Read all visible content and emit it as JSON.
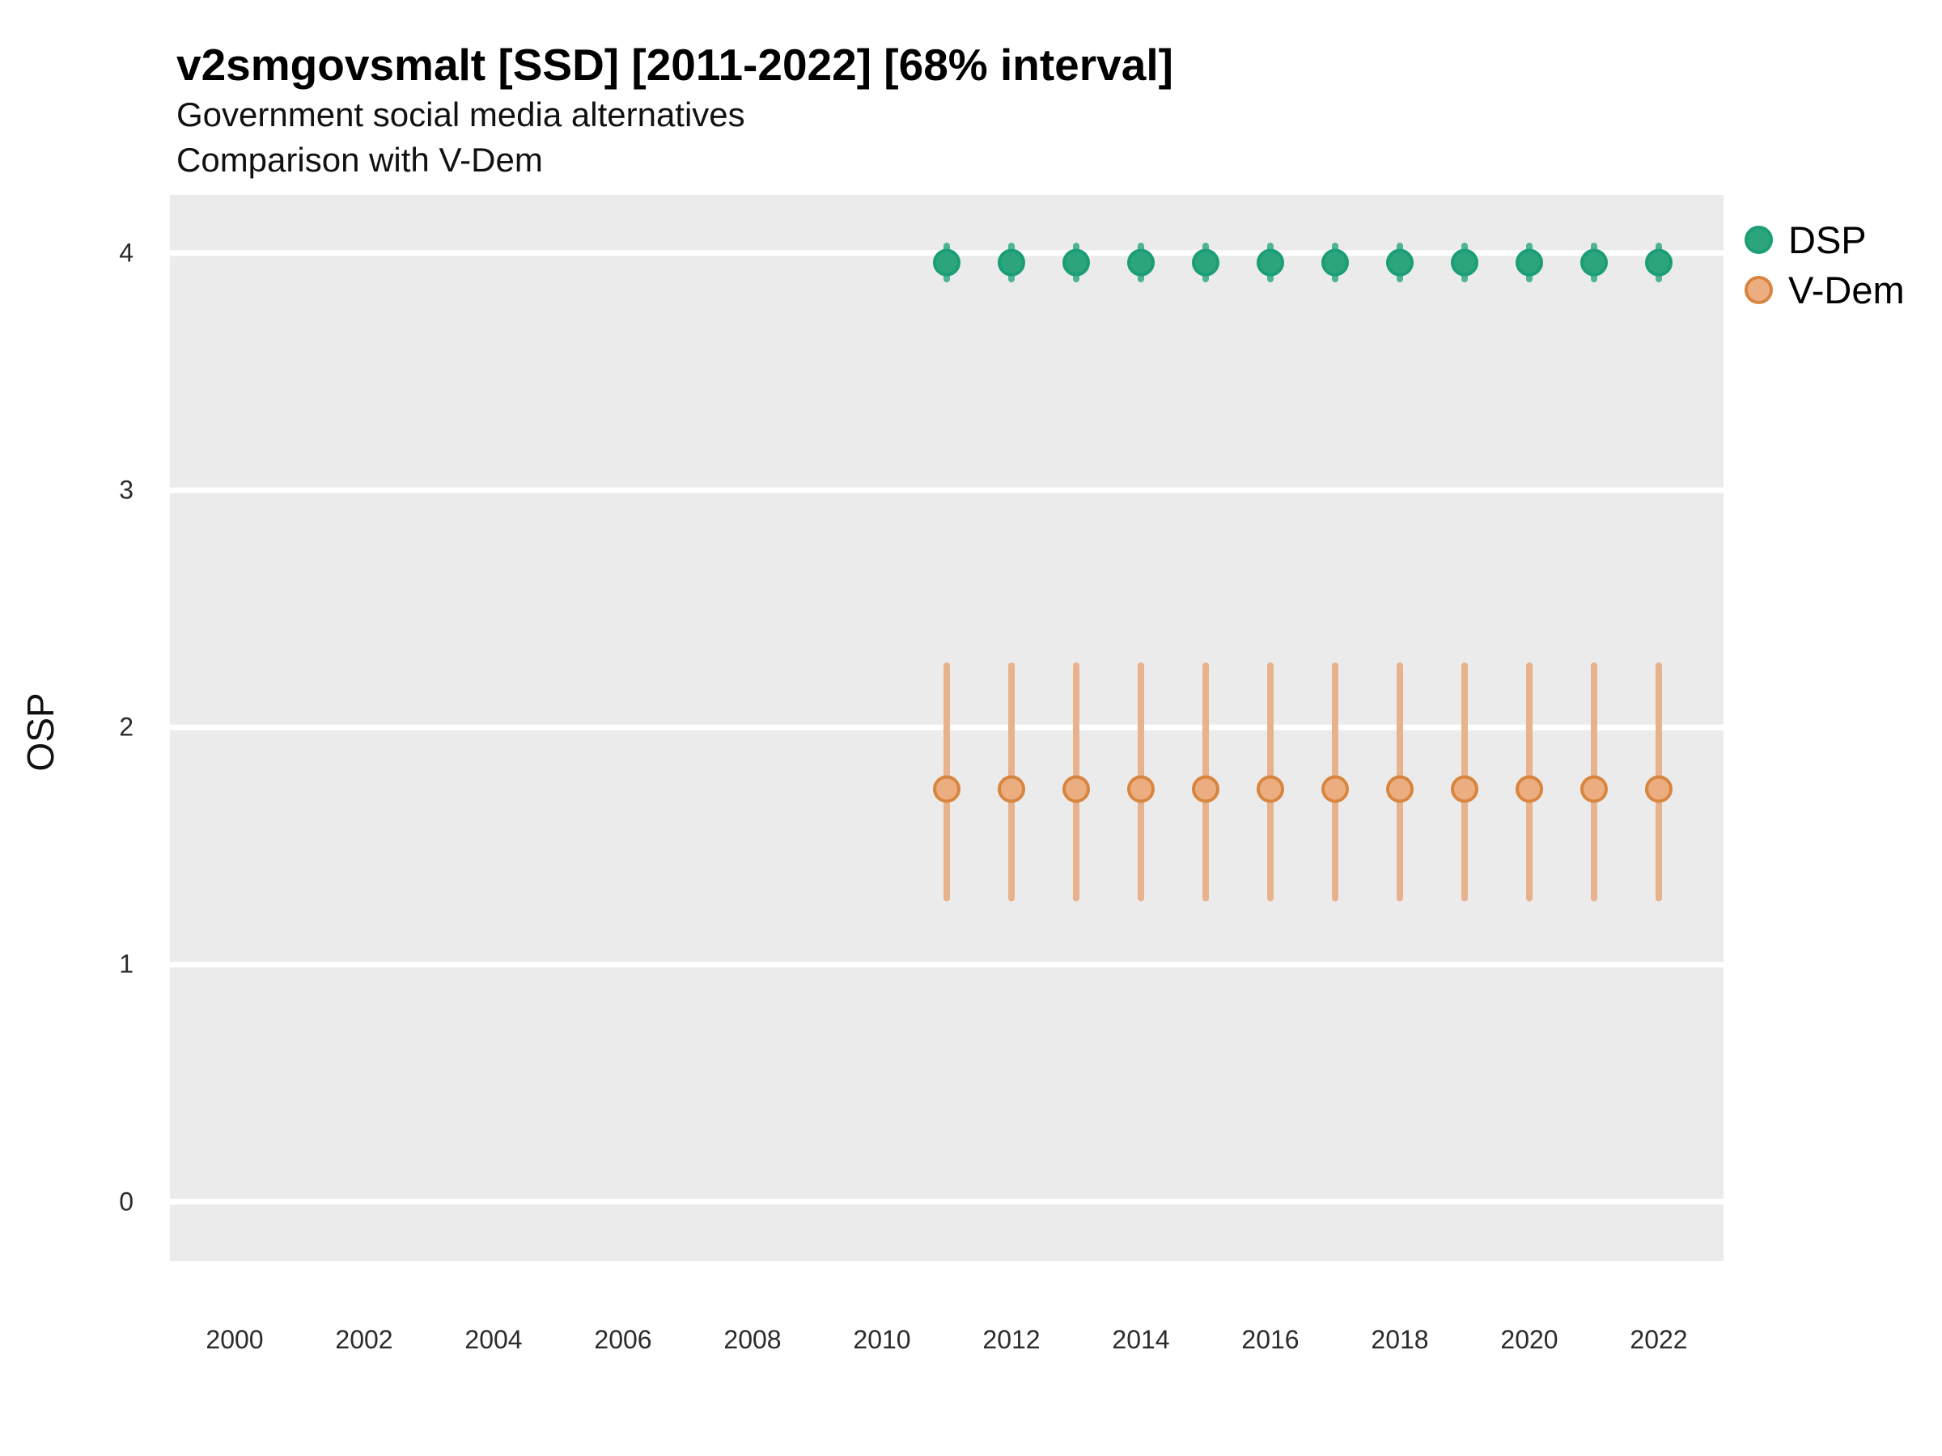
{
  "header": {
    "title": "v2smgovsmalt [SSD] [2011-2022] [68% interval]",
    "subtitle1": "Government social media alternatives",
    "subtitle2": "Comparison with V-Dem"
  },
  "chart_data": {
    "type": "pointrange",
    "title": "v2smgovsmalt [SSD] [2011-2022] [68% interval]",
    "subtitle": [
      "Government social media alternatives",
      "Comparison with V-Dem"
    ],
    "xlabel": "",
    "ylabel": "OSP",
    "legend_position": "top-right",
    "grid": "horizontal-major-only",
    "panel_bg": "#EBEBEB",
    "gridline_color": "#FFFFFF",
    "x": [
      2011,
      2012,
      2013,
      2014,
      2015,
      2016,
      2017,
      2018,
      2019,
      2020,
      2021,
      2022
    ],
    "x_ticks": [
      2000,
      2002,
      2004,
      2006,
      2008,
      2010,
      2012,
      2014,
      2016,
      2018,
      2020,
      2022
    ],
    "y_ticks": [
      0,
      1,
      2,
      3,
      4
    ],
    "xlim": [
      1999,
      2023
    ],
    "ylim": [
      -0.25,
      4.245
    ],
    "interval_level": "68%",
    "series": [
      {
        "name": "DSP",
        "point_fill": "#2CA57D",
        "point_stroke": "#1B9E77",
        "bar_color": "#4FB492",
        "values": [
          3.96,
          3.96,
          3.96,
          3.96,
          3.96,
          3.96,
          3.96,
          3.96,
          3.96,
          3.96,
          3.96,
          3.96
        ],
        "lower": [
          3.89,
          3.89,
          3.89,
          3.89,
          3.89,
          3.89,
          3.89,
          3.89,
          3.89,
          3.89,
          3.89,
          3.89
        ],
        "upper": [
          4.03,
          4.03,
          4.03,
          4.03,
          4.03,
          4.03,
          4.03,
          4.03,
          4.03,
          4.03,
          4.03,
          4.03
        ]
      },
      {
        "name": "V-Dem",
        "point_fill": "#ECAE80",
        "point_stroke": "#D8853F",
        "bar_color": "#E7B28C",
        "values": [
          1.74,
          1.74,
          1.74,
          1.74,
          1.74,
          1.74,
          1.74,
          1.74,
          1.74,
          1.74,
          1.74,
          1.74
        ],
        "lower": [
          1.28,
          1.28,
          1.28,
          1.28,
          1.28,
          1.28,
          1.28,
          1.28,
          1.28,
          1.28,
          1.28,
          1.28
        ],
        "upper": [
          2.26,
          2.26,
          2.26,
          2.26,
          2.26,
          2.26,
          2.26,
          2.26,
          2.26,
          2.26,
          2.26,
          2.26
        ]
      }
    ]
  }
}
